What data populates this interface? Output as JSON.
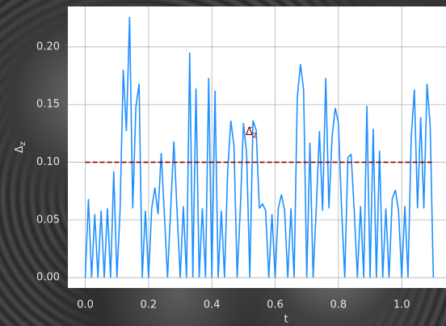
{
  "chart_data": {
    "type": "line",
    "xlabel": "t",
    "ylabel": "Δz",
    "annotation": "Δ̃z",
    "x": [
      0,
      0.01,
      0.02,
      0.03,
      0.04,
      0.05,
      0.06,
      0.07,
      0.08,
      0.09,
      0.1,
      0.11,
      0.12,
      0.13,
      0.14,
      0.15,
      0.16,
      0.17,
      0.18,
      0.19,
      0.2,
      0.21,
      0.22,
      0.23,
      0.24,
      0.25,
      0.26,
      0.27,
      0.28,
      0.29,
      0.3,
      0.31,
      0.32,
      0.33,
      0.34,
      0.35,
      0.36,
      0.37,
      0.38,
      0.39,
      0.4,
      0.41,
      0.42,
      0.43,
      0.44,
      0.45,
      0.46,
      0.47,
      0.48,
      0.49,
      0.5,
      0.51,
      0.52,
      0.53,
      0.54,
      0.55,
      0.56,
      0.57,
      0.58,
      0.59,
      0.6,
      0.61,
      0.62,
      0.63,
      0.64,
      0.65,
      0.66,
      0.67,
      0.68,
      0.69,
      0.7,
      0.71,
      0.72,
      0.73,
      0.74,
      0.75,
      0.76,
      0.77,
      0.78,
      0.79,
      0.8,
      0.81,
      0.82,
      0.83,
      0.84,
      0.85,
      0.86,
      0.87,
      0.88,
      0.89,
      0.9,
      0.91,
      0.92,
      0.93,
      0.94,
      0.95,
      0.96,
      0.97,
      0.98,
      0.99,
      1.0,
      1.01,
      1.02,
      1.03,
      1.04,
      1.05,
      1.06,
      1.07,
      1.08,
      1.09,
      1.1
    ],
    "series": [
      {
        "color": "#1e90ff",
        "values": [
          0,
          0.068,
          0,
          0.055,
          0,
          0.058,
          0,
          0.06,
          0,
          0.092,
          0,
          0.058,
          0.18,
          0.127,
          0.226,
          0.06,
          0.148,
          0.168,
          0,
          0.058,
          0,
          0.06,
          0.078,
          0.055,
          0.108,
          0.055,
          0,
          0.06,
          0.118,
          0.058,
          0,
          0.062,
          0,
          0.195,
          0,
          0.164,
          0,
          0.06,
          0,
          0.173,
          0,
          0.162,
          0,
          0.058,
          0,
          0.092,
          0.136,
          0.114,
          0,
          0.06,
          0.134,
          0.107,
          0,
          0.136,
          0.128,
          0.06,
          0.064,
          0.058,
          0,
          0.055,
          0,
          0.06,
          0.072,
          0.058,
          0,
          0.06,
          0,
          0.156,
          0.185,
          0.163,
          0,
          0.117,
          0,
          0.06,
          0.127,
          0.058,
          0.173,
          0.06,
          0.122,
          0.147,
          0.134,
          0.06,
          0,
          0.104,
          0.107,
          0.058,
          0,
          0.062,
          0,
          0.149,
          0,
          0.129,
          0,
          0.11,
          0,
          0.06,
          0,
          0.068,
          0.076,
          0.058,
          0,
          0.062,
          0,
          0.121,
          0.163,
          0.06,
          0.139,
          0.06,
          0.168,
          0.132,
          0
        ]
      }
    ],
    "hline": {
      "y": 0.1,
      "x": [
        0,
        1.1
      ],
      "color": "#8b0000"
    },
    "xlim": [
      -0.055,
      1.14
    ],
    "ylim": [
      -0.009,
      0.235
    ],
    "xticks": [
      {
        "value": 0,
        "label": "0.0"
      },
      0.2,
      0.4,
      0.6,
      0.8,
      {
        "value": 1,
        "label": "1.0"
      }
    ],
    "yticks": [
      {
        "value": 0,
        "label": "0.00"
      },
      {
        "value": 0.05,
        "label": "0.05"
      },
      {
        "value": 0.1,
        "label": "0.10"
      },
      {
        "value": 0.15,
        "label": "0.15"
      },
      {
        "value": 0.2,
        "label": "0.20"
      }
    ],
    "grid": true
  }
}
